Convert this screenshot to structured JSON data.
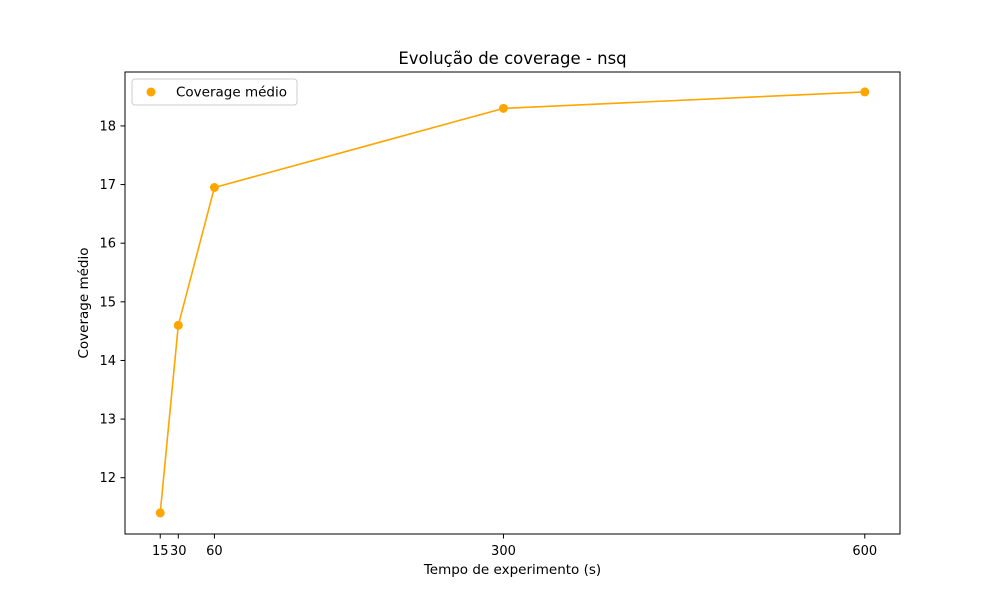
{
  "chart_data": {
    "type": "line",
    "title": "Evolução de coverage - nsq",
    "xlabel": "Tempo de experimento (s)",
    "ylabel": "Coverage médio",
    "x": [
      15,
      30,
      60,
      300,
      600
    ],
    "x_tick_labels": [
      "15",
      "30",
      "60",
      "300",
      "600"
    ],
    "y_ticks": [
      12,
      13,
      14,
      15,
      16,
      17,
      18
    ],
    "y_tick_labels": [
      "12",
      "13",
      "14",
      "15",
      "16",
      "17",
      "18"
    ],
    "xlim": [
      -14.25,
      629.25
    ],
    "ylim": [
      11.04,
      18.92
    ],
    "series": [
      {
        "name": "Coverage médio",
        "color": "#ffa500",
        "x": [
          15,
          30,
          60,
          300,
          600
        ],
        "y": [
          11.4,
          14.6,
          16.95,
          18.3,
          18.58
        ]
      }
    ],
    "legend": {
      "placement": "top-left",
      "entries": [
        "Coverage médio"
      ]
    },
    "grid": false
  }
}
